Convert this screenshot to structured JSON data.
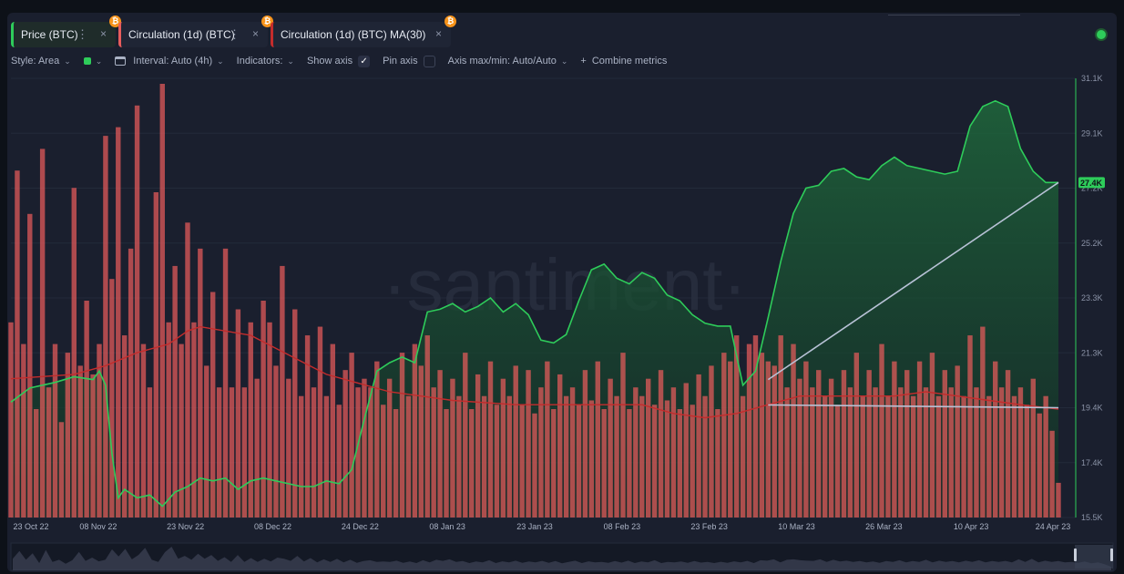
{
  "metric_tabs": [
    {
      "label": "Price (BTC)"
    },
    {
      "label": "Circulation (1d) (BTC)"
    },
    {
      "label": "Circulation (1d) (BTC) MA(30)"
    }
  ],
  "toolbar": {
    "style": "Style: Area",
    "interval": "Interval: Auto (4h)",
    "indicators": "Indicators:",
    "show_axis": "Show axis",
    "pin_axis": "Pin axis",
    "axis_maxmin": "Axis max/min: Auto/Auto",
    "combine": "Combine metrics"
  },
  "icons": {
    "close": "×",
    "menu": "⋮",
    "btc": "₿",
    "check": "✓",
    "chevron": "⌄",
    "plus": "+"
  },
  "colors": {
    "price": "#2ecc5a",
    "circulation": "#e85c5c",
    "ma": "#c42c2c",
    "trendline": "#b8c2d6"
  },
  "chart_data": {
    "type": "area",
    "watermark": "·santiment·",
    "x_labels": [
      "23 Oct 22",
      "08 Nov 22",
      "23 Nov 22",
      "08 Dec 22",
      "24 Dec 22",
      "08 Jan 23",
      "23 Jan 23",
      "08 Feb 23",
      "23 Feb 23",
      "10 Mar 23",
      "26 Mar 23",
      "10 Apr 23",
      "24 Apr 23"
    ],
    "y_ticks": [
      "31.1K",
      "29.1K",
      "27.2K",
      "25.2K",
      "23.3K",
      "21.3K",
      "19.4K",
      "17.4K",
      "15.5K"
    ],
    "y_range": [
      15500,
      31100
    ],
    "current_price_label": "27.4K",
    "current_price": 27400,
    "price_series": [
      [
        0,
        19600
      ],
      [
        3,
        20100
      ],
      [
        7,
        20300
      ],
      [
        10,
        20500
      ],
      [
        13,
        20400
      ],
      [
        14,
        20700
      ],
      [
        15,
        20200
      ],
      [
        16,
        17800
      ],
      [
        17,
        16200
      ],
      [
        18,
        16500
      ],
      [
        20,
        16200
      ],
      [
        22,
        16300
      ],
      [
        24,
        15900
      ],
      [
        26,
        16400
      ],
      [
        28,
        16600
      ],
      [
        30,
        16900
      ],
      [
        32,
        16800
      ],
      [
        34,
        16900
      ],
      [
        36,
        16500
      ],
      [
        38,
        16800
      ],
      [
        40,
        16900
      ],
      [
        42,
        16800
      ],
      [
        44,
        16700
      ],
      [
        46,
        16600
      ],
      [
        48,
        16600
      ],
      [
        50,
        16800
      ],
      [
        52,
        16700
      ],
      [
        54,
        17200
      ],
      [
        56,
        19000
      ],
      [
        58,
        20700
      ],
      [
        60,
        21000
      ],
      [
        62,
        21200
      ],
      [
        64,
        21000
      ],
      [
        66,
        22800
      ],
      [
        68,
        22900
      ],
      [
        70,
        23100
      ],
      [
        72,
        22800
      ],
      [
        74,
        23000
      ],
      [
        76,
        23300
      ],
      [
        78,
        22800
      ],
      [
        80,
        23100
      ],
      [
        82,
        22700
      ],
      [
        84,
        21800
      ],
      [
        86,
        21700
      ],
      [
        88,
        22000
      ],
      [
        90,
        23200
      ],
      [
        92,
        24300
      ],
      [
        94,
        24500
      ],
      [
        96,
        24000
      ],
      [
        98,
        23800
      ],
      [
        100,
        24200
      ],
      [
        102,
        24000
      ],
      [
        104,
        23400
      ],
      [
        106,
        23200
      ],
      [
        108,
        22700
      ],
      [
        110,
        22400
      ],
      [
        112,
        22300
      ],
      [
        114,
        22300
      ],
      [
        116,
        20200
      ],
      [
        118,
        20700
      ],
      [
        120,
        22600
      ],
      [
        122,
        24600
      ],
      [
        124,
        26300
      ],
      [
        126,
        27200
      ],
      [
        128,
        27300
      ],
      [
        130,
        27800
      ],
      [
        132,
        27900
      ],
      [
        134,
        27600
      ],
      [
        136,
        27500
      ],
      [
        138,
        28000
      ],
      [
        140,
        28300
      ],
      [
        142,
        28000
      ],
      [
        144,
        27900
      ],
      [
        146,
        27800
      ],
      [
        148,
        27700
      ],
      [
        150,
        27800
      ],
      [
        152,
        29400
      ],
      [
        154,
        30100
      ],
      [
        156,
        30300
      ],
      [
        158,
        30100
      ],
      [
        160,
        28600
      ],
      [
        162,
        27800
      ],
      [
        164,
        27400
      ],
      [
        166,
        27400
      ]
    ],
    "trendline": {
      "from": [
        120,
        20400
      ],
      "to": [
        166,
        27400
      ]
    },
    "support_line": {
      "from": [
        120,
        19500
      ],
      "to": [
        166,
        19400
      ]
    },
    "circulation_series": [
      [
        0,
        45
      ],
      [
        1,
        80
      ],
      [
        2,
        40
      ],
      [
        3,
        70
      ],
      [
        4,
        25
      ],
      [
        5,
        85
      ],
      [
        6,
        30
      ],
      [
        7,
        40
      ],
      [
        8,
        22
      ],
      [
        9,
        38
      ],
      [
        10,
        76
      ],
      [
        11,
        35
      ],
      [
        12,
        50
      ],
      [
        13,
        33
      ],
      [
        14,
        40
      ],
      [
        15,
        88
      ],
      [
        16,
        55
      ],
      [
        17,
        90
      ],
      [
        18,
        42
      ],
      [
        19,
        62
      ],
      [
        20,
        95
      ],
      [
        21,
        40
      ],
      [
        22,
        30
      ],
      [
        23,
        75
      ],
      [
        24,
        100
      ],
      [
        25,
        45
      ],
      [
        26,
        58
      ],
      [
        27,
        40
      ],
      [
        28,
        68
      ],
      [
        29,
        45
      ],
      [
        30,
        62
      ],
      [
        31,
        35
      ],
      [
        32,
        52
      ],
      [
        33,
        30
      ],
      [
        34,
        62
      ],
      [
        35,
        30
      ],
      [
        36,
        48
      ],
      [
        37,
        30
      ],
      [
        38,
        45
      ],
      [
        39,
        32
      ],
      [
        40,
        50
      ],
      [
        41,
        45
      ],
      [
        42,
        35
      ],
      [
        43,
        58
      ],
      [
        44,
        32
      ],
      [
        45,
        48
      ],
      [
        46,
        28
      ],
      [
        47,
        42
      ],
      [
        48,
        30
      ],
      [
        49,
        44
      ],
      [
        50,
        28
      ],
      [
        51,
        40
      ],
      [
        52,
        26
      ],
      [
        53,
        34
      ],
      [
        54,
        38
      ],
      [
        55,
        30
      ],
      [
        56,
        32
      ],
      [
        57,
        30
      ],
      [
        58,
        36
      ],
      [
        59,
        26
      ],
      [
        60,
        32
      ],
      [
        61,
        25
      ],
      [
        62,
        38
      ],
      [
        63,
        28
      ],
      [
        64,
        40
      ],
      [
        65,
        35
      ],
      [
        66,
        42
      ],
      [
        67,
        30
      ],
      [
        68,
        34
      ],
      [
        69,
        25
      ],
      [
        70,
        32
      ],
      [
        71,
        28
      ],
      [
        72,
        38
      ],
      [
        73,
        25
      ],
      [
        74,
        33
      ],
      [
        75,
        28
      ],
      [
        76,
        36
      ],
      [
        77,
        26
      ],
      [
        78,
        32
      ],
      [
        79,
        28
      ],
      [
        80,
        35
      ],
      [
        81,
        26
      ],
      [
        82,
        34
      ],
      [
        83,
        24
      ],
      [
        84,
        30
      ],
      [
        85,
        36
      ],
      [
        86,
        25
      ],
      [
        87,
        33
      ],
      [
        88,
        28
      ],
      [
        89,
        30
      ],
      [
        90,
        26
      ],
      [
        91,
        34
      ],
      [
        92,
        27
      ],
      [
        93,
        36
      ],
      [
        94,
        25
      ],
      [
        95,
        32
      ],
      [
        96,
        28
      ],
      [
        97,
        38
      ],
      [
        98,
        25
      ],
      [
        99,
        30
      ],
      [
        100,
        28
      ],
      [
        101,
        32
      ],
      [
        102,
        26
      ],
      [
        103,
        34
      ],
      [
        104,
        27
      ],
      [
        105,
        30
      ],
      [
        106,
        25
      ],
      [
        107,
        31
      ],
      [
        108,
        26
      ],
      [
        109,
        33
      ],
      [
        110,
        28
      ],
      [
        111,
        35
      ],
      [
        112,
        25
      ],
      [
        113,
        38
      ],
      [
        114,
        36
      ],
      [
        115,
        42
      ],
      [
        116,
        28
      ],
      [
        117,
        40
      ],
      [
        118,
        42
      ],
      [
        119,
        38
      ],
      [
        120,
        36
      ],
      [
        121,
        35
      ],
      [
        122,
        42
      ],
      [
        123,
        30
      ],
      [
        124,
        40
      ],
      [
        125,
        32
      ],
      [
        126,
        36
      ],
      [
        127,
        30
      ],
      [
        128,
        34
      ],
      [
        129,
        28
      ],
      [
        130,
        32
      ],
      [
        131,
        26
      ],
      [
        132,
        34
      ],
      [
        133,
        30
      ],
      [
        134,
        38
      ],
      [
        135,
        28
      ],
      [
        136,
        34
      ],
      [
        137,
        30
      ],
      [
        138,
        40
      ],
      [
        139,
        28
      ],
      [
        140,
        36
      ],
      [
        141,
        30
      ],
      [
        142,
        34
      ],
      [
        143,
        28
      ],
      [
        144,
        36
      ],
      [
        145,
        30
      ],
      [
        146,
        38
      ],
      [
        147,
        28
      ],
      [
        148,
        34
      ],
      [
        149,
        30
      ],
      [
        150,
        35
      ],
      [
        151,
        28
      ],
      [
        152,
        42
      ],
      [
        153,
        30
      ],
      [
        154,
        44
      ],
      [
        155,
        28
      ],
      [
        156,
        36
      ],
      [
        157,
        30
      ],
      [
        158,
        34
      ],
      [
        159,
        28
      ],
      [
        160,
        30
      ],
      [
        161,
        26
      ],
      [
        162,
        32
      ],
      [
        163,
        24
      ],
      [
        164,
        28
      ],
      [
        165,
        20
      ],
      [
        166,
        8
      ]
    ],
    "ma_series": [
      [
        0,
        32
      ],
      [
        10,
        33
      ],
      [
        15,
        35
      ],
      [
        20,
        38
      ],
      [
        25,
        40
      ],
      [
        28,
        43
      ],
      [
        30,
        44
      ],
      [
        34,
        43
      ],
      [
        38,
        42
      ],
      [
        42,
        39
      ],
      [
        46,
        36
      ],
      [
        50,
        33
      ],
      [
        55,
        31
      ],
      [
        60,
        29
      ],
      [
        65,
        28
      ],
      [
        70,
        27
      ],
      [
        80,
        26
      ],
      [
        90,
        26
      ],
      [
        100,
        26
      ],
      [
        105,
        24
      ],
      [
        110,
        23
      ],
      [
        115,
        24
      ],
      [
        120,
        26
      ],
      [
        125,
        28
      ],
      [
        130,
        28
      ],
      [
        135,
        28
      ],
      [
        140,
        28
      ],
      [
        145,
        29
      ],
      [
        150,
        28
      ],
      [
        155,
        27
      ],
      [
        160,
        26
      ],
      [
        166,
        25
      ]
    ]
  }
}
